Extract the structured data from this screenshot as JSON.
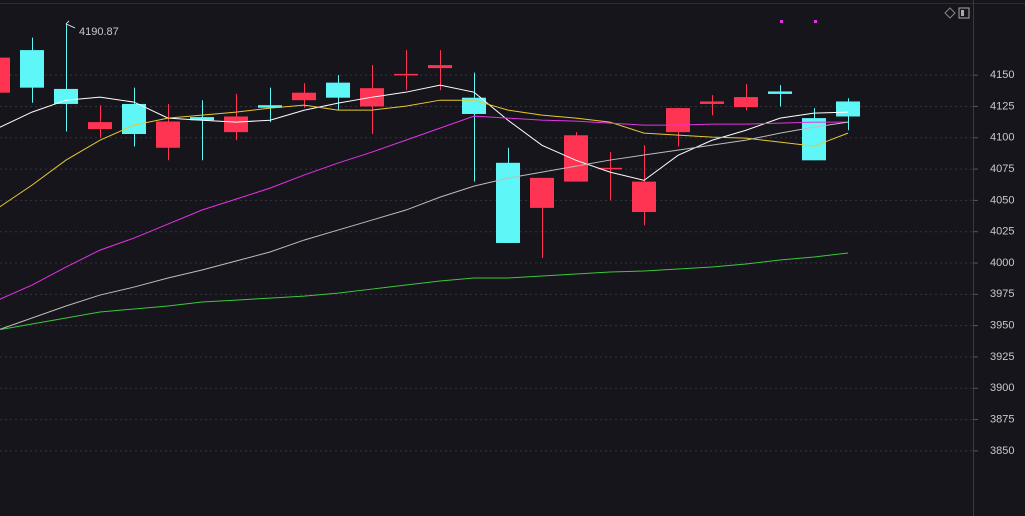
{
  "chart_data": {
    "type": "candlestick",
    "categories": [
      null,
      null,
      null,
      null,
      null,
      null,
      null,
      null,
      null,
      null,
      null,
      null,
      null,
      null,
      null,
      null,
      null,
      null,
      null,
      null,
      null,
      null,
      null,
      null,
      null,
      null
    ],
    "open": [
      4136,
      4170,
      4139,
      4107,
      4127,
      4092,
      4116.5,
      4104.5,
      4126,
      4130,
      4144,
      4125,
      4150,
      4155.6,
      4132,
      4080,
      4044,
      4065,
      4075,
      4040.7,
      4104.5,
      4127,
      4124.5,
      4137,
      4115.7,
      4129
    ],
    "high": [
      4164,
      4180,
      4190.87,
      4126,
      4140,
      4127,
      4130,
      4135,
      4140,
      4143.6,
      4150,
      4158,
      4170,
      4170,
      4152,
      4092,
      4068,
      4104.5,
      4088.6,
      4094,
      4124,
      4134,
      4143,
      4142,
      4123.7,
      4131.6
    ],
    "low": [
      4136,
      4128,
      4105,
      4100,
      4093,
      4082,
      4082,
      4098,
      4112.5,
      4124,
      4122,
      4103,
      4138,
      4138,
      4065,
      4016,
      4004,
      4065,
      4050,
      4030,
      4093,
      4118,
      4122,
      4125,
      4082,
      4106
    ],
    "close": [
      4164,
      4140,
      4127,
      4112.5,
      4103,
      4113,
      4114,
      4117,
      4124,
      4136,
      4132,
      4139.6,
      4151,
      4158,
      4119,
      4016,
      4068,
      4102,
      4076,
      4065,
      4123.7,
      4129,
      4132.5,
      4135,
      4082,
      4117
    ],
    "up_color": "#ff3352",
    "down_color": "#5ef6f6",
    "series": [
      {
        "color": "#ffffff",
        "values": [
          4107.7,
          4120.5,
          4130,
          4132.4,
          4128.5,
          4115.7,
          4114,
          4112.5,
          4114,
          4122,
          4127.7,
          4132.4,
          4136.4,
          4142,
          4136.4,
          4114,
          4094,
          4082,
          4072.6,
          4066,
          4086,
          4098,
          4106,
          4115.7,
          4119.7,
          4120.5
        ]
      },
      {
        "color": "#e8c832",
        "values": [
          4043.9,
          4062.2,
          4082.2,
          4098.1,
          4110.1,
          4115.7,
          4118.1,
          4120.5,
          4123.7,
          4126.1,
          4122.1,
          4122.1,
          4125.3,
          4130,
          4130,
          4122.1,
          4118.1,
          4115.7,
          4112.5,
          4103.7,
          4102.1,
          4100.5,
          4099.7,
          4096.5,
          4093.3,
          4103.7
        ]
      },
      {
        "color": "#e632e6",
        "values": [
          3970.4,
          3982.4,
          3996.8,
          4010.3,
          4019.9,
          4031.1,
          4042.3,
          4051,
          4059.8,
          4070.2,
          4079.8,
          4088.6,
          4098.1,
          4107.7,
          4117.3,
          4115.7,
          4114.1,
          4113.3,
          4111.7,
          4110.1,
          4110.1,
          4110.9,
          4110.9,
          4111.7,
          4112.5,
          4112.5
        ]
      },
      {
        "color": "#bdbdbd",
        "values": [
          3946.5,
          3956.1,
          3965.7,
          3974.4,
          3980.8,
          3988,
          3994.4,
          4001.6,
          4008.8,
          4018.3,
          4026.3,
          4034.3,
          4042.3,
          4052.6,
          4061.4,
          4067.8,
          4072.6,
          4077.4,
          4082.2,
          4086.2,
          4090.1,
          4094.1,
          4098.1,
          4103.7,
          4108.5,
          4112.5
        ]
      },
      {
        "color": "#3cc83c",
        "values": [
          3946.5,
          3951.3,
          3956.1,
          3960.9,
          3963.3,
          3965.7,
          3968.9,
          3970.4,
          3972,
          3973.6,
          3976,
          3979.2,
          3982.4,
          3985.6,
          3988,
          3988,
          3989.6,
          3991.2,
          3992.8,
          3993.6,
          3995.2,
          3996.8,
          3999.2,
          4002.4,
          4004.8,
          4008
        ]
      }
    ],
    "annotations": [
      {
        "text": "4190.87",
        "index": 2
      }
    ],
    "ylim": [
      3798,
      4210
    ],
    "yticks": [
      3850,
      3875,
      3900,
      3925,
      3950,
      3975,
      4000,
      4025,
      4050,
      4075,
      4100,
      4125,
      4150
    ],
    "grid": true
  }
}
